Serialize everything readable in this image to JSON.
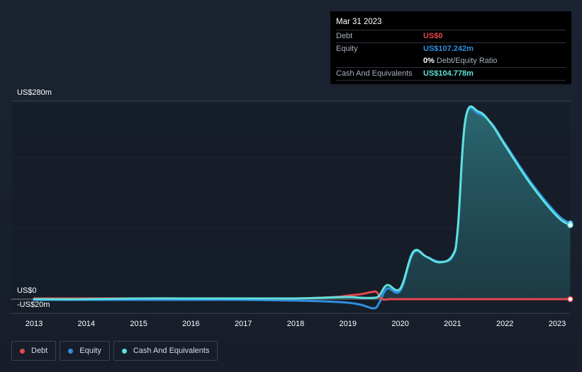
{
  "tooltip": {
    "date": "Mar 31 2023",
    "debt_label": "Debt",
    "debt_value": "US$0",
    "equity_label": "Equity",
    "equity_value": "US$107.242m",
    "ratio_pct": "0%",
    "ratio_text": "Debt/Equity Ratio",
    "cash_label": "Cash And Equivalents",
    "cash_value": "US$104.778m"
  },
  "colors": {
    "debt": "#e5484d",
    "equity": "#2f8fe0",
    "cash": "#5fe0dc"
  },
  "legend": [
    {
      "label": "Debt",
      "color": "#e5484d"
    },
    {
      "label": "Equity",
      "color": "#2f8fe0"
    },
    {
      "label": "Cash And Equivalents",
      "color": "#5fe0dc"
    }
  ],
  "chart_data": {
    "type": "area",
    "title": "",
    "xlabel": "",
    "ylabel": "",
    "y_unit": "US$m",
    "ylim": [
      -20,
      280
    ],
    "y_tick_labels": [
      "US$280m",
      "US$0",
      "-US$20m"
    ],
    "x_ticks": [
      2013,
      2014,
      2015,
      2016,
      2017,
      2018,
      2019,
      2020,
      2021,
      2022,
      2023
    ],
    "x_tick_labels": [
      "2013",
      "2014",
      "2015",
      "2016",
      "2017",
      "2018",
      "2019",
      "2020",
      "2021",
      "2022",
      "2023"
    ],
    "xlim": [
      2012.55,
      2023.25
    ],
    "series": [
      {
        "name": "Debt",
        "x": [
          2013.0,
          2014.0,
          2015.0,
          2016.0,
          2017.0,
          2018.0,
          2018.75,
          2019.0,
          2019.25,
          2019.45,
          2019.55,
          2019.65,
          2019.8,
          2020.0,
          2021.0,
          2022.0,
          2023.25
        ],
        "values": [
          1,
          1,
          1,
          1,
          1,
          1,
          3,
          5,
          7,
          10,
          10,
          0,
          0,
          0,
          0,
          0,
          0
        ]
      },
      {
        "name": "Equity",
        "x": [
          2013.0,
          2014.0,
          2015.0,
          2016.0,
          2017.0,
          2018.0,
          2018.5,
          2019.0,
          2019.25,
          2019.5,
          2019.6,
          2019.75,
          2020.0,
          2020.25,
          2020.5,
          2020.75,
          2021.0,
          2021.1,
          2021.25,
          2021.5,
          2021.75,
          2022.0,
          2022.5,
          2023.0,
          2023.25
        ],
        "values": [
          -1,
          -1,
          -1,
          -1,
          -1,
          -2,
          -3,
          -5,
          -8,
          -13,
          -5,
          15,
          12,
          65,
          60,
          53,
          60,
          100,
          255,
          262,
          248,
          220,
          165,
          120,
          107.242
        ]
      },
      {
        "name": "Cash And Equivalents",
        "x": [
          2013.0,
          2014.0,
          2015.0,
          2016.0,
          2017.0,
          2018.0,
          2018.5,
          2019.0,
          2019.25,
          2019.5,
          2019.6,
          2019.75,
          2020.0,
          2020.25,
          2020.5,
          2020.75,
          2021.0,
          2021.1,
          2021.25,
          2021.5,
          2021.75,
          2022.0,
          2022.5,
          2023.0,
          2023.25
        ],
        "values": [
          0,
          0,
          1,
          1,
          1,
          1,
          2,
          3,
          2,
          2,
          5,
          20,
          15,
          67,
          60,
          52,
          62,
          100,
          256,
          265,
          247,
          218,
          162,
          117,
          104.778
        ]
      }
    ]
  }
}
